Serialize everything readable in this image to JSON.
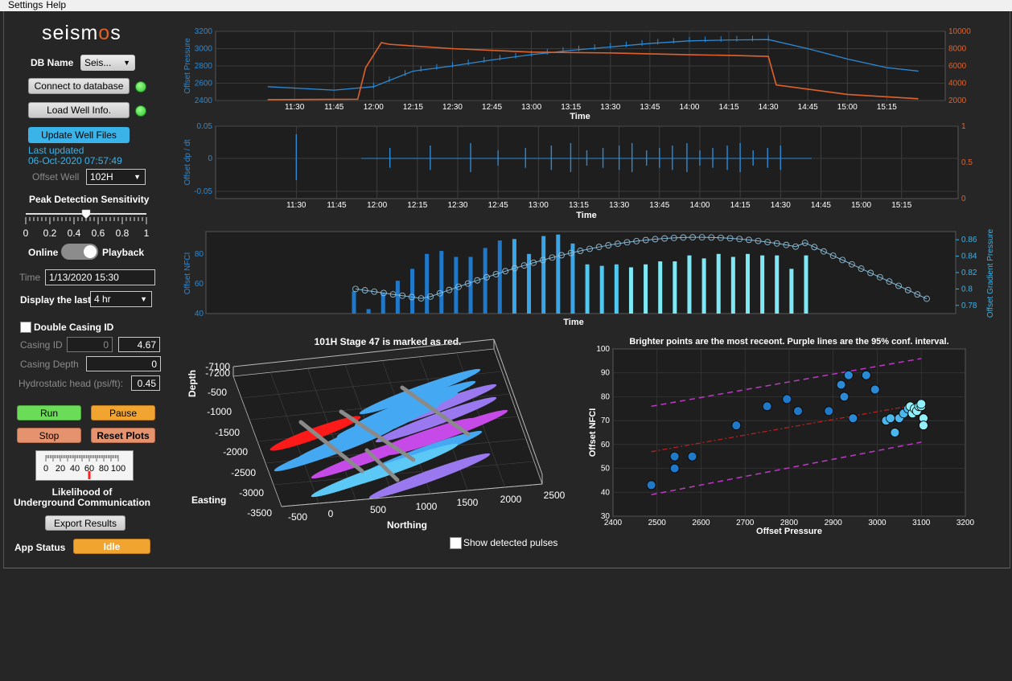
{
  "menu": {
    "items": [
      "Settings",
      "Help"
    ]
  },
  "logo": {
    "text_a": "seism",
    "text_b": "o",
    "text_c": "s"
  },
  "db": {
    "label": "DB Name",
    "value": "Seis..."
  },
  "buttons": {
    "connect": "Connect to database",
    "load_well": "Load Well Info.",
    "update_files": "Update Well Files",
    "run": "Run",
    "pause": "Pause",
    "stop": "Stop",
    "reset": "Reset Plots",
    "export": "Export Results"
  },
  "last_updated": {
    "label": "Last updated",
    "value": "06-Oct-2020 07:57:49"
  },
  "offset_well": {
    "label": "Offset Well",
    "value": "102H"
  },
  "sensitivity": {
    "label": "Peak Detection Sensitivity",
    "ticks": [
      "0",
      "0.2",
      "0.4",
      "0.6",
      "0.8",
      "1"
    ],
    "value": 0.5
  },
  "mode": {
    "online": "Online",
    "playback": "Playback"
  },
  "time_field": {
    "label": "Time",
    "value": "1/13/2020 15:30"
  },
  "display_last": {
    "label": "Display the last",
    "value": "4 hr"
  },
  "double_casing": {
    "label": "Double Casing ID"
  },
  "casing_id": {
    "label": "Casing ID",
    "value1": "0",
    "value2": "4.67"
  },
  "casing_depth": {
    "label": "Casing Depth",
    "value": "0"
  },
  "hydrostatic": {
    "label": "Hydrostatic head (psi/ft):",
    "value": "0.45"
  },
  "gauge": {
    "ticks": [
      "0",
      "20",
      "40",
      "60",
      "80",
      "100"
    ],
    "value": 60,
    "label_line1": "Likelihood of",
    "label_line2": "Underground Communication"
  },
  "app_status": {
    "label": "App Status",
    "value": "Idle"
  },
  "show_pulses": {
    "label": "Show detected pulses"
  },
  "colors": {
    "blue": "#2b8ad6",
    "orange": "#e0622a",
    "cyan": "#7fe8f5",
    "purple": "#c038c8",
    "red": "#ff1a1a"
  },
  "chart_data": [
    {
      "type": "line",
      "title": "",
      "xlabel": "Time",
      "ylabel": "Offset Pressure",
      "ylim": [
        2400,
        3200
      ],
      "yticks": [
        "2400",
        "2600",
        "2800",
        "3000",
        "3200"
      ],
      "y2lim": [
        2000,
        10000
      ],
      "y2ticks": [
        "2000",
        "4000",
        "6000",
        "8000",
        "10000"
      ],
      "xticks": [
        "11:30",
        "11:45",
        "12:00",
        "12:15",
        "12:30",
        "12:45",
        "13:00",
        "13:15",
        "13:30",
        "13:45",
        "14:00",
        "14:15",
        "14:30",
        "14:45",
        "15:00",
        "15:15"
      ],
      "series": [
        {
          "axis": "left",
          "x": [
            11.33,
            11.75,
            12.0,
            12.25,
            12.5,
            12.75,
            13.0,
            13.25,
            13.5,
            13.75,
            14.0,
            14.25,
            14.5,
            14.75,
            15.0,
            15.25,
            15.45
          ],
          "y": [
            2560,
            2520,
            2560,
            2740,
            2800,
            2870,
            2930,
            2980,
            3020,
            3060,
            3090,
            3100,
            3105,
            3000,
            2880,
            2780,
            2740
          ]
        },
        {
          "axis": "right",
          "x": [
            11.33,
            11.9,
            11.95,
            12.05,
            12.1,
            12.5,
            13.0,
            13.5,
            14.0,
            14.3,
            14.5,
            14.55,
            15.0,
            15.45
          ],
          "y": [
            2100,
            2150,
            5800,
            8700,
            8500,
            8000,
            7600,
            7500,
            7300,
            7200,
            7100,
            3800,
            2700,
            2200
          ]
        }
      ]
    },
    {
      "type": "line",
      "title": "",
      "xlabel": "Time",
      "ylabel": "Offset dp / dt",
      "ylim": [
        -0.05,
        0.05
      ],
      "yticks": [
        "-0.05",
        "0",
        "0.05"
      ],
      "y2ticks": [
        "0",
        "0.5",
        "1"
      ],
      "xticks": [
        "11:30",
        "11:45",
        "12:00",
        "12:15",
        "12:30",
        "12:45",
        "13:00",
        "13:15",
        "13:30",
        "13:45",
        "14:00",
        "14:15",
        "14:30",
        "14:45",
        "15:00",
        "15:15"
      ]
    },
    {
      "type": "bar",
      "title": "",
      "xlabel": "Time",
      "ylabel": "Offset NFCI",
      "ylim": [
        40,
        95
      ],
      "yticks": [
        "40",
        "60",
        "80"
      ],
      "y2label": "Offset Gradient Pressure",
      "y2lim": [
        0.77,
        0.87
      ],
      "y2ticks": [
        "0.78",
        "0.8",
        "0.82",
        "0.84",
        "0.86"
      ],
      "values": [
        55,
        43,
        54,
        62,
        70,
        80,
        82,
        78,
        78,
        84,
        89,
        90,
        80,
        92,
        93,
        87,
        73,
        72,
        73,
        71,
        73,
        75,
        75,
        79,
        77,
        80,
        78,
        80,
        79,
        79,
        70,
        79
      ]
    },
    {
      "type": "scatter",
      "title": "101H Stage 47 is marked as red.",
      "xlabel": "Northing",
      "ylabel": "Depth",
      "zlabel": "Easting",
      "xticks": [
        "-500",
        "0",
        "500",
        "1000",
        "1500",
        "2000",
        "2500"
      ],
      "zticks": [
        "-7100",
        "-7200",
        "-500",
        "-1000",
        "-1500",
        "-2000",
        "-2500",
        "-3000",
        "-3500"
      ]
    },
    {
      "type": "scatter",
      "title": "Brighter points are the most receont. Purple lines are the 95% conf. interval.",
      "xlabel": "Offset Pressure",
      "ylabel": "Offset NFCI",
      "xlim": [
        2400,
        3200
      ],
      "ylim": [
        30,
        100
      ],
      "xticks": [
        "2400",
        "2500",
        "2600",
        "2700",
        "2800",
        "2900",
        "3000",
        "3100",
        "3200"
      ],
      "yticks": [
        "30",
        "40",
        "50",
        "60",
        "70",
        "80",
        "90",
        "100"
      ],
      "x": [
        2487,
        2540,
        2540,
        2580,
        2680,
        2750,
        2795,
        2820,
        2890,
        2918,
        2925,
        2935,
        2945,
        2975,
        2995,
        3020,
        3030,
        3040,
        3050,
        3060,
        3070,
        3075,
        3080,
        3085,
        3090,
        3095,
        3100,
        3100,
        3105,
        3105
      ],
      "y": [
        43,
        50,
        55,
        55,
        68,
        76,
        79,
        74,
        74,
        85,
        80,
        89,
        71,
        89,
        83,
        70,
        71,
        65,
        71,
        73,
        75,
        76,
        73,
        75,
        74,
        76,
        76,
        77,
        71,
        68
      ],
      "fit": {
        "x": [
          2487,
          3100
        ],
        "y": [
          57,
          77
        ]
      },
      "ci_upper": {
        "x": [
          2487,
          3100
        ],
        "y": [
          76,
          96
        ]
      },
      "ci_lower": {
        "x": [
          2487,
          3100
        ],
        "y": [
          39,
          61
        ]
      }
    }
  ]
}
